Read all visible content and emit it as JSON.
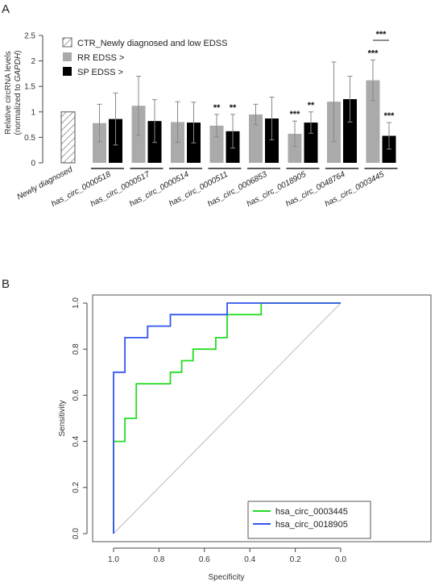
{
  "panel_a": {
    "label": "A"
  },
  "panel_b": {
    "label": "B"
  },
  "chart_data": [
    {
      "type": "bar",
      "ylabel_line1": "Relative circRNA levels",
      "ylabel_line2_prefix": "(normalized to ",
      "ylabel_line2_gene": "GAPDH",
      "ylabel_line2_suffix": ")",
      "ylim": [
        0,
        2.5
      ],
      "yticks": [
        "0",
        "0.5",
        "1",
        "1.5",
        "2",
        "2.5"
      ],
      "legend": {
        "placement": "top-left",
        "entries": [
          "CTR_Newly diagnosed and low EDSS",
          "RR EDSS >",
          "SP EDSS >"
        ]
      },
      "colors": {
        "ctr": "#ffffff",
        "rr": "#aaaaaa",
        "sp": "#000000"
      },
      "reference": {
        "category": "Newly diagnosed",
        "value": 1.0
      },
      "categories": [
        "has_circ_0000518",
        "has_circ_0000517",
        "has_circ_0000514",
        "has_circ_0000511",
        "has_circ_0006853",
        "has_circ_0018905",
        "has_circ_0048764",
        "has_circ_0003445"
      ],
      "series": [
        {
          "name": "RR EDSS >",
          "values": [
            0.78,
            1.12,
            0.8,
            0.73,
            0.95,
            0.57,
            1.2,
            1.62
          ],
          "err_high": [
            1.15,
            1.7,
            1.2,
            0.95,
            1.15,
            0.82,
            1.98,
            2.02
          ],
          "err_low": [
            0.41,
            0.54,
            0.4,
            0.51,
            0.75,
            0.32,
            0.42,
            1.22
          ],
          "significance": [
            "",
            "",
            "",
            "**",
            "",
            "***",
            "",
            "***"
          ]
        },
        {
          "name": "SP EDSS >",
          "values": [
            0.86,
            0.82,
            0.79,
            0.62,
            0.87,
            0.79,
            1.25,
            0.53
          ],
          "err_high": [
            1.37,
            1.24,
            1.19,
            0.95,
            1.29,
            1.0,
            1.7,
            0.79
          ],
          "err_low": [
            0.35,
            0.4,
            0.39,
            0.29,
            0.45,
            0.58,
            0.8,
            0.27
          ],
          "significance": [
            "",
            "",
            "",
            "**",
            "",
            "**",
            "",
            "***"
          ]
        }
      ],
      "bracket_annotation": {
        "category": "has_circ_0003445",
        "label": "***"
      }
    },
    {
      "type": "line",
      "xlabel": "Specificity",
      "ylabel": "Sensitivity",
      "xlim": [
        1.0,
        0.0
      ],
      "ylim": [
        0.0,
        1.0
      ],
      "xticks": [
        "1.0",
        "0.8",
        "0.6",
        "0.4",
        "0.2",
        "0.0"
      ],
      "yticks": [
        "0.0",
        "0.2",
        "0.4",
        "0.6",
        "0.8",
        "1.0"
      ],
      "diagonal_reference": true,
      "legend": {
        "placement": "bottom-right"
      },
      "series": [
        {
          "name": "hsa_circ_0003445",
          "color": "#22dd22",
          "x": [
            1.0,
            1.0,
            0.95,
            0.95,
            0.9,
            0.9,
            0.75,
            0.75,
            0.7,
            0.7,
            0.65,
            0.65,
            0.55,
            0.55,
            0.5,
            0.5,
            0.35,
            0.35,
            0.0
          ],
          "y": [
            0.0,
            0.4,
            0.4,
            0.5,
            0.5,
            0.65,
            0.65,
            0.7,
            0.7,
            0.75,
            0.75,
            0.8,
            0.8,
            0.85,
            0.85,
            0.95,
            0.95,
            1.0,
            1.0
          ]
        },
        {
          "name": "hsa_circ_0018905",
          "color": "#3355ee",
          "x": [
            1.0,
            1.0,
            0.95,
            0.95,
            0.85,
            0.85,
            0.75,
            0.75,
            0.5,
            0.5,
            0.0
          ],
          "y": [
            0.0,
            0.7,
            0.7,
            0.85,
            0.85,
            0.9,
            0.9,
            0.95,
            0.95,
            1.0,
            1.0
          ]
        }
      ]
    }
  ]
}
